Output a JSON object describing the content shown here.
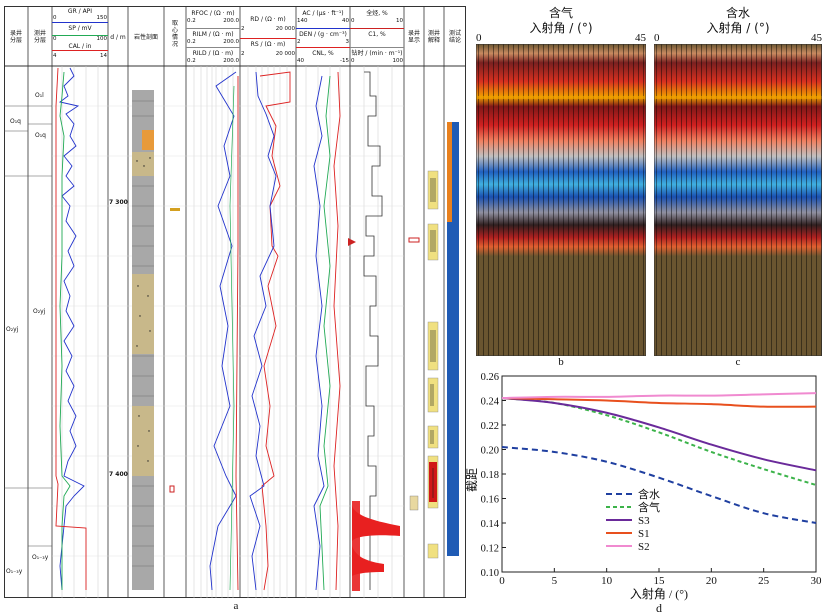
{
  "log_panel": {
    "caption": "a",
    "headers": {
      "strat_a": "录井\n分层",
      "strat_b": "测井\n分层",
      "depth_unit": "d / m",
      "lithology": "岩性剖面",
      "coring": "取\n心\n情\n况",
      "mud_show": "录井\n显示",
      "interp": "测井\n解释",
      "test": "测试\n结论"
    },
    "track1": [
      {
        "name": "GR / API",
        "min": "0",
        "max": "150",
        "color": "#2233cc"
      },
      {
        "name": "SP / mV",
        "min": "",
        "max": "",
        "color": "#22aa55"
      },
      {
        "name": "CAL / in",
        "min": "0",
        "max": "100",
        "color": "#dd2222"
      },
      {
        "name": "",
        "min": "4",
        "max": "14",
        "color": "#22aa55"
      }
    ],
    "track2": [
      {
        "name": "RFOC / (Ω · m)",
        "min": "0.2",
        "max": "200.0"
      },
      {
        "name": "RILM / (Ω · m)",
        "min": "0.2",
        "max": "200.0"
      },
      {
        "name": "RILD / (Ω · m)",
        "min": "0.2",
        "max": "200.0"
      }
    ],
    "track3": [
      {
        "name": "RD / (Ω · m)",
        "min": "2",
        "max": "20 000"
      },
      {
        "name": "RS / (Ω · m)",
        "min": "2",
        "max": "20 000"
      }
    ],
    "track4": [
      {
        "name": "AC / (μs · ft⁻¹)",
        "min": "140",
        "max": "40"
      },
      {
        "name": "DEN / (g · cm⁻³)",
        "min": "2",
        "max": "3"
      },
      {
        "name": "CNL, %",
        "min": "40",
        "max": "-15"
      }
    ],
    "track5": [
      {
        "name": "全烃, %",
        "min": "0",
        "max": "10"
      },
      {
        "name": "C1, %",
        "min": "0",
        "max": "10"
      },
      {
        "name": "钻时 / (min · m⁻¹)",
        "min": "0",
        "max": "100"
      }
    ],
    "strata": {
      "o1l": "O₁l",
      "o1q_a": "O₁q",
      "o1q_b": "O₁q",
      "o2yj_a": "O₂yj",
      "o2yj_b": "O₂yj",
      "o1_3y": "O₁₋₃y"
    },
    "depths": [
      "7 300",
      "7 400"
    ]
  },
  "panel_b": {
    "caption": "b",
    "title": "含气",
    "axis": "入射角 / (°)",
    "min": "0",
    "max": "45"
  },
  "panel_c": {
    "caption": "c",
    "title": "含水",
    "axis": "入射角 / (°)",
    "min": "0",
    "max": "45"
  },
  "chart_data": {
    "type": "line",
    "caption": "d",
    "xlabel": "入射角 / (°)",
    "ylabel": "截距",
    "xlim": [
      0,
      30
    ],
    "ylim": [
      0.1,
      0.26
    ],
    "xticks": [
      "0",
      "5",
      "10",
      "15",
      "20",
      "25",
      "30"
    ],
    "yticks": [
      "0.10",
      "0.12",
      "0.14",
      "0.16",
      "0.18",
      "0.20",
      "0.22",
      "0.24",
      "0.26"
    ],
    "x": [
      0,
      5,
      10,
      15,
      20,
      25,
      30
    ],
    "series": [
      {
        "name": "含水",
        "color": "#1f3fa0",
        "dash": "6,4",
        "values": [
          0.202,
          0.198,
          0.19,
          0.177,
          0.162,
          0.148,
          0.14
        ]
      },
      {
        "name": "含气",
        "color": "#3cb34a",
        "dash": "4,3",
        "values": [
          0.242,
          0.238,
          0.228,
          0.214,
          0.198,
          0.184,
          0.171
        ]
      },
      {
        "name": "S3",
        "color": "#6a2a9a",
        "dash": "",
        "values": [
          0.242,
          0.238,
          0.23,
          0.218,
          0.204,
          0.192,
          0.183
        ]
      },
      {
        "name": "S1",
        "color": "#e8501e",
        "dash": "",
        "values": [
          0.242,
          0.241,
          0.24,
          0.238,
          0.237,
          0.235,
          0.235
        ]
      },
      {
        "name": "S2",
        "color": "#f08ad0",
        "dash": "",
        "values": [
          0.242,
          0.243,
          0.243,
          0.244,
          0.244,
          0.245,
          0.246
        ]
      }
    ]
  }
}
